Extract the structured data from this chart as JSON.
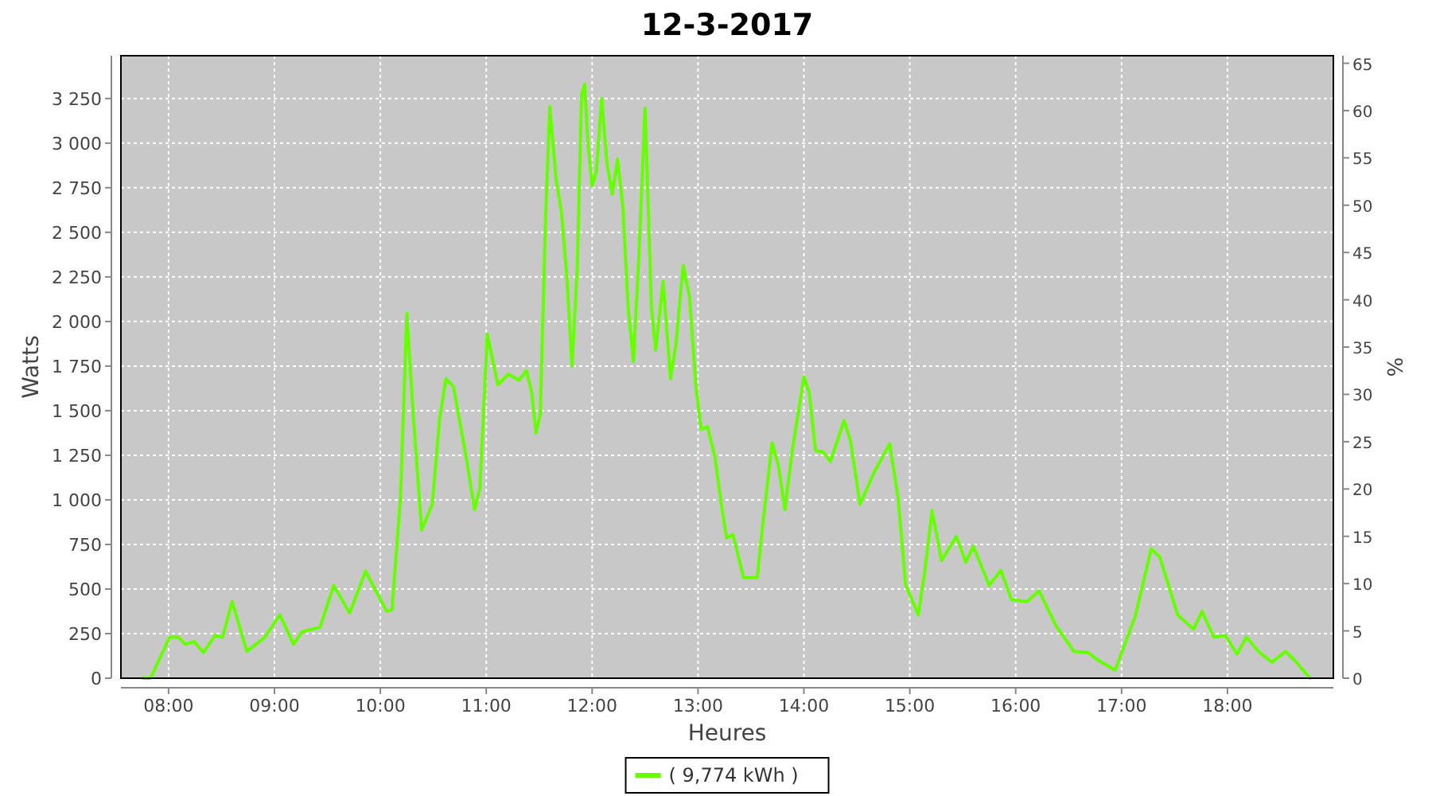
{
  "chart_data": {
    "type": "line",
    "title": "12-3-2017",
    "xlabel": "Heures",
    "ylabel": "Watts",
    "y2label": "%",
    "xlim": [
      7.55,
      19
    ],
    "xticks": [
      {
        "value": 8,
        "label": "08:00"
      },
      {
        "value": 9,
        "label": "09:00"
      },
      {
        "value": 10,
        "label": "10:00"
      },
      {
        "value": 11,
        "label": "11:00"
      },
      {
        "value": 12,
        "label": "12:00"
      },
      {
        "value": 13,
        "label": "13:00"
      },
      {
        "value": 14,
        "label": "14:00"
      },
      {
        "value": 15,
        "label": "15:00"
      },
      {
        "value": 16,
        "label": "16:00"
      },
      {
        "value": 17,
        "label": "17:00"
      },
      {
        "value": 18,
        "label": "18:00"
      }
    ],
    "ylim": [
      0,
      3490
    ],
    "yticks": [
      0,
      250,
      500,
      750,
      {
        "value": 1000,
        "label": "1 000"
      },
      {
        "value": 1250,
        "label": "1 250"
      },
      {
        "value": 1500,
        "label": "1 500"
      },
      {
        "value": 1750,
        "label": "1 750"
      },
      {
        "value": 2000,
        "label": "2 000"
      },
      {
        "value": 2250,
        "label": "2 250"
      },
      {
        "value": 2500,
        "label": "2 500"
      },
      {
        "value": 2750,
        "label": "2 750"
      },
      {
        "value": 3000,
        "label": "3 000"
      },
      {
        "value": 3250,
        "label": "3 250"
      }
    ],
    "y2lim": [
      0,
      65.8
    ],
    "y2ticks": [
      0,
      5,
      10,
      15,
      20,
      25,
      30,
      35,
      40,
      45,
      50,
      55,
      60,
      65
    ],
    "grid": true,
    "legend": "bottom",
    "marker": "none",
    "line_style": "solid",
    "series": [
      {
        "name": "( 9,774 kWh )",
        "color": "#66ff00",
        "x": [
          7.76,
          7.83,
          8.01,
          8.09,
          8.16,
          8.24,
          8.33,
          8.44,
          8.51,
          8.6,
          8.74,
          8.91,
          9.05,
          9.18,
          9.26,
          9.43,
          9.56,
          9.71,
          9.86,
          10.06,
          10.11,
          10.19,
          10.25,
          10.31,
          10.39,
          10.49,
          10.56,
          10.62,
          10.69,
          10.81,
          10.89,
          10.94,
          11.01,
          11.11,
          11.21,
          11.31,
          11.38,
          11.43,
          11.47,
          11.51,
          11.56,
          11.6,
          11.66,
          11.71,
          11.76,
          11.81,
          11.86,
          11.9,
          11.93,
          11.96,
          12.0,
          12.04,
          12.09,
          12.14,
          12.19,
          12.24,
          12.29,
          12.34,
          12.39,
          12.44,
          12.5,
          12.56,
          12.6,
          12.67,
          12.74,
          12.79,
          12.86,
          12.92,
          12.98,
          13.03,
          13.09,
          13.16,
          13.22,
          13.27,
          13.33,
          13.43,
          13.56,
          13.61,
          13.7,
          13.76,
          13.82,
          13.89,
          14.0,
          14.05,
          14.11,
          14.18,
          14.25,
          14.38,
          14.44,
          14.53,
          14.66,
          14.81,
          14.89,
          14.96,
          15.08,
          15.14,
          15.21,
          15.3,
          15.44,
          15.53,
          15.6,
          15.75,
          15.86,
          15.96,
          16.11,
          16.22,
          16.38,
          16.55,
          16.68,
          16.78,
          16.94,
          17.13,
          17.28,
          17.36,
          17.53,
          17.68,
          17.76,
          17.87,
          17.98,
          18.09,
          18.18,
          18.3,
          18.42,
          18.55,
          18.65,
          18.78
        ],
        "values": [
          0,
          0,
          230,
          230,
          190,
          205,
          145,
          240,
          230,
          430,
          150,
          230,
          355,
          190,
          260,
          285,
          520,
          365,
          600,
          375,
          385,
          1010,
          2045,
          1480,
          830,
          975,
          1455,
          1680,
          1635,
          1240,
          945,
          1065,
          1930,
          1645,
          1705,
          1670,
          1725,
          1600,
          1375,
          1480,
          2580,
          3205,
          2795,
          2615,
          2260,
          1750,
          2315,
          3270,
          3330,
          3000,
          2760,
          2840,
          3250,
          2885,
          2715,
          2910,
          2645,
          2080,
          1775,
          2350,
          3195,
          2080,
          1840,
          2225,
          1680,
          1865,
          2315,
          2135,
          1635,
          1395,
          1410,
          1240,
          975,
          785,
          805,
          565,
          565,
          855,
          1320,
          1190,
          945,
          1275,
          1690,
          1600,
          1275,
          1270,
          1215,
          1445,
          1330,
          975,
          1150,
          1315,
          1010,
          525,
          355,
          590,
          940,
          660,
          795,
          650,
          740,
          520,
          605,
          440,
          430,
          490,
          295,
          150,
          145,
          100,
          45,
          350,
          725,
          680,
          355,
          275,
          375,
          230,
          240,
          135,
          230,
          145,
          90,
          150,
          90,
          0
        ]
      }
    ]
  }
}
